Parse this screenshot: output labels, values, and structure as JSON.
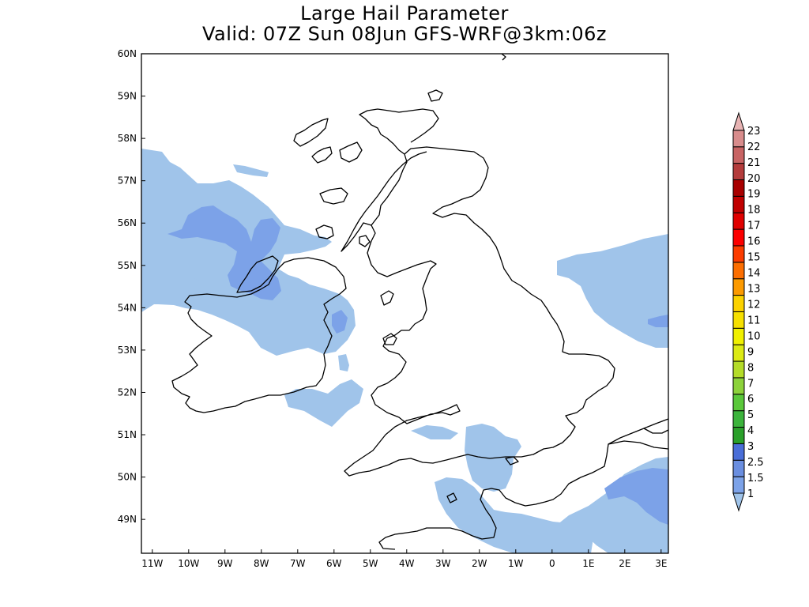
{
  "header": {
    "title": "Large Hail Parameter",
    "subtitle": "Valid: 07Z Sun 08Jun GFS-WRF@3km:06z"
  },
  "map": {
    "lon_range": [
      -11.3,
      3.2
    ],
    "lat_range": [
      48.2,
      60.0
    ],
    "lat_ticks": [
      "49N",
      "50N",
      "51N",
      "52N",
      "53N",
      "54N",
      "55N",
      "56N",
      "57N",
      "58N",
      "59N",
      "60N"
    ],
    "lon_ticks": [
      "11W",
      "10W",
      "9W",
      "8W",
      "7W",
      "6W",
      "5W",
      "4W",
      "3W",
      "2W",
      "1W",
      "0",
      "1E",
      "2E",
      "3E"
    ],
    "field_colors": {
      "light": "#a0c4ea",
      "medium": "#7ca2e8"
    }
  },
  "legend": {
    "labels": [
      "1",
      "1.5",
      "2.5",
      "3",
      "4",
      "5",
      "6",
      "7",
      "8",
      "9",
      "10",
      "11",
      "12",
      "13",
      "14",
      "15",
      "16",
      "17",
      "18",
      "19",
      "20",
      "21",
      "22",
      "23"
    ],
    "colors": [
      "#a0c4ea",
      "#7ca2e8",
      "#6a8ee0",
      "#4a6ed8",
      "#2aa02a",
      "#3cb43c",
      "#5ac83a",
      "#8cd23a",
      "#b4dc28",
      "#dcea14",
      "#f0f000",
      "#f6e000",
      "#fcd200",
      "#fc9a00",
      "#fc6e00",
      "#fc3c00",
      "#fc0000",
      "#e00000",
      "#c00000",
      "#a80000",
      "#b43c3c",
      "#c86464",
      "#d88c8c",
      "#e8b4b4"
    ]
  }
}
